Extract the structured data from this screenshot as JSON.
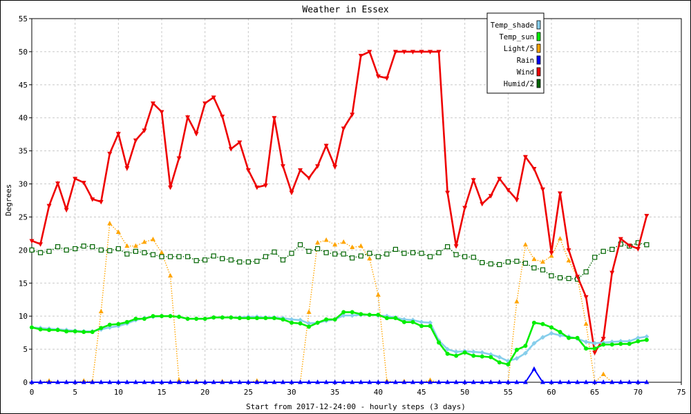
{
  "chart_data": {
    "type": "line",
    "title": "Weather in Essex",
    "xlabel": "Start from 2017-12-24:00 - hourly steps (3 days)",
    "ylabel": "Degrees",
    "xlim": [
      0,
      75
    ],
    "ylim": [
      0,
      55
    ],
    "xticks": [
      0,
      5,
      10,
      15,
      20,
      25,
      30,
      35,
      40,
      45,
      50,
      55,
      60,
      65,
      70,
      75
    ],
    "yticks": [
      0,
      5,
      10,
      15,
      20,
      25,
      30,
      35,
      40,
      45,
      50,
      55
    ],
    "grid": true,
    "legend_position": "top-right",
    "series": [
      {
        "name": "Temp_shade",
        "color": "#87ceeb",
        "marker": "diamond",
        "line": "solid",
        "values": [
          8.3,
          8.2,
          8.1,
          8.0,
          7.9,
          7.8,
          7.7,
          7.7,
          8.0,
          8.3,
          8.5,
          8.9,
          9.4,
          9.7,
          9.9,
          10.0,
          10.0,
          9.9,
          9.6,
          9.6,
          9.6,
          9.8,
          9.8,
          9.8,
          9.8,
          9.9,
          9.9,
          9.8,
          9.8,
          9.7,
          9.5,
          9.4,
          8.9,
          9.0,
          9.3,
          9.5,
          10.1,
          10.1,
          10.2,
          10.2,
          10.1,
          10.0,
          9.8,
          9.5,
          9.4,
          9.1,
          9.0,
          6.3,
          5.0,
          4.6,
          4.7,
          4.6,
          4.5,
          4.2,
          3.8,
          3.2,
          3.6,
          4.4,
          5.9,
          6.8,
          7.4,
          7.1,
          6.9,
          6.6,
          6.1,
          5.9,
          6.0,
          6.1,
          6.2,
          6.2,
          6.7,
          6.9
        ]
      },
      {
        "name": "Temp_sun",
        "color": "#00ee00",
        "marker": "circle",
        "line": "solid",
        "values": [
          8.3,
          8.0,
          7.9,
          7.9,
          7.7,
          7.7,
          7.6,
          7.6,
          8.2,
          8.7,
          8.8,
          9.1,
          9.6,
          9.6,
          10.0,
          10.0,
          10.0,
          9.9,
          9.6,
          9.6,
          9.6,
          9.8,
          9.8,
          9.8,
          9.7,
          9.7,
          9.7,
          9.7,
          9.7,
          9.5,
          9.0,
          8.9,
          8.4,
          9.0,
          9.5,
          9.5,
          10.6,
          10.6,
          10.3,
          10.2,
          10.2,
          9.7,
          9.7,
          9.1,
          9.1,
          8.5,
          8.5,
          6.0,
          4.3,
          4.0,
          4.5,
          4.0,
          3.9,
          3.8,
          3.0,
          2.7,
          4.9,
          5.5,
          9.0,
          8.8,
          8.3,
          7.6,
          6.7,
          6.7,
          5.1,
          5.1,
          5.7,
          5.7,
          5.8,
          5.8,
          6.2,
          6.4
        ]
      },
      {
        "name": "Light/5",
        "color": "#ffa500",
        "marker": "triangle-up",
        "line": "dotted",
        "values": [
          0,
          0,
          0.2,
          0,
          0,
          0,
          0.2,
          0.1,
          10.7,
          24.0,
          22.7,
          20.6,
          20.6,
          21.2,
          21.6,
          19.6,
          16.1,
          0.3,
          0,
          0.1,
          0,
          0,
          0.1,
          0,
          0,
          0,
          0.2,
          0,
          0,
          0,
          0,
          0,
          10.6,
          21.1,
          21.5,
          20.8,
          21.2,
          20.4,
          20.6,
          18.7,
          13.2,
          0.2,
          0,
          0.1,
          0,
          0,
          0.3,
          0,
          0,
          0,
          0,
          0,
          0,
          0,
          0,
          0,
          12.2,
          20.8,
          18.6,
          18.2,
          19.1,
          21.7,
          18.4,
          15.9,
          8.8,
          0,
          1.2,
          0,
          0,
          0,
          0,
          0
        ]
      },
      {
        "name": "Rain",
        "color": "#0000ff",
        "marker": "triangle-up",
        "line": "solid",
        "values": [
          0,
          0,
          0,
          0,
          0,
          0,
          0,
          0,
          0,
          0,
          0,
          0,
          0,
          0,
          0,
          0,
          0,
          0,
          0,
          0,
          0,
          0,
          0,
          0,
          0,
          0,
          0,
          0,
          0,
          0,
          0,
          0,
          0,
          0,
          0,
          0,
          0,
          0,
          0,
          0,
          0,
          0,
          0,
          0,
          0,
          0,
          0,
          0,
          0,
          0,
          0,
          0,
          0,
          0,
          0,
          0,
          0,
          0,
          2.0,
          0,
          0,
          0,
          0,
          0,
          0,
          0,
          0,
          0,
          0,
          0,
          0,
          0
        ]
      },
      {
        "name": "Wind",
        "color": "#ee0000",
        "marker": "triangle-down",
        "line": "solid",
        "values": [
          21.4,
          20.9,
          26.7,
          30.1,
          26.1,
          30.8,
          30.2,
          27.7,
          27.3,
          34.6,
          37.6,
          32.4,
          36.6,
          38.1,
          42.2,
          40.9,
          29.5,
          33.9,
          40.1,
          37.6,
          42.2,
          43.1,
          40.2,
          35.3,
          36.3,
          32.1,
          29.5,
          29.8,
          40.0,
          32.7,
          28.7,
          32.1,
          30.9,
          32.7,
          35.8,
          32.6,
          38.4,
          40.5,
          49.4,
          50.0,
          46.3,
          46.0,
          50.0,
          50.0,
          50.0,
          50.0,
          50.0,
          50.0,
          28.7,
          20.6,
          26.4,
          30.6,
          27.0,
          28.2,
          30.8,
          29.1,
          27.6,
          34.1,
          32.3,
          29.2,
          19.6,
          28.6,
          20.0,
          16.0,
          12.9,
          4.5,
          6.6,
          16.6,
          21.7,
          20.7,
          20.2,
          25.2
        ]
      },
      {
        "name": "Humid/2",
        "color": "#006400",
        "marker": "square",
        "line": "dotted",
        "values": [
          20.0,
          19.6,
          19.8,
          20.5,
          20.0,
          20.2,
          20.6,
          20.5,
          20.0,
          19.9,
          20.2,
          19.4,
          19.8,
          19.6,
          19.3,
          19.0,
          19.0,
          19.0,
          19.0,
          18.4,
          18.5,
          19.1,
          18.7,
          18.5,
          18.2,
          18.2,
          18.3,
          19.0,
          19.7,
          18.5,
          19.5,
          20.8,
          19.8,
          20.2,
          19.6,
          19.4,
          19.4,
          18.8,
          19.1,
          19.5,
          19.0,
          19.4,
          20.1,
          19.5,
          19.6,
          19.5,
          19.0,
          19.6,
          20.5,
          19.3,
          19.0,
          18.9,
          18.1,
          17.9,
          17.8,
          18.2,
          18.3,
          18.0,
          17.3,
          17.0,
          16.1,
          15.8,
          15.7,
          15.6,
          16.7,
          18.9,
          19.8,
          20.1,
          20.9,
          20.6,
          21.1,
          20.8
        ]
      }
    ]
  }
}
